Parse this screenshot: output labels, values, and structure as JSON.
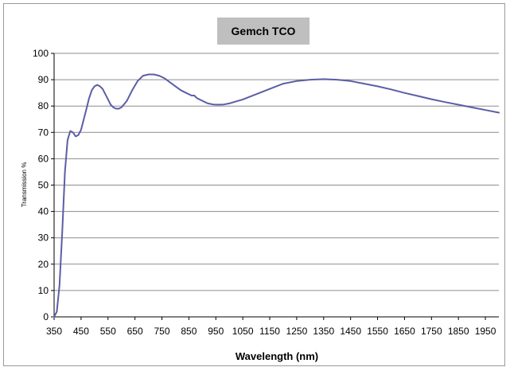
{
  "chart_data": {
    "type": "line",
    "title": "Gemch TCO",
    "xlabel": "Wavelength (nm)",
    "ylabel": "Transmission %",
    "xlim": [
      350,
      2000
    ],
    "ylim": [
      0,
      100
    ],
    "x_ticks": [
      350,
      450,
      550,
      650,
      750,
      850,
      950,
      1050,
      1150,
      1250,
      1350,
      1450,
      1550,
      1650,
      1750,
      1850,
      1950
    ],
    "y_ticks": [
      0,
      10,
      20,
      30,
      40,
      50,
      60,
      70,
      80,
      90,
      100
    ],
    "grid": "horizontal",
    "legend": "none",
    "colors": {
      "line": "#5b5ea6",
      "title_box": "#bfbfbf",
      "grid": "#8c8c8c"
    },
    "series": [
      {
        "x": [
          350,
          360,
          370,
          380,
          390,
          400,
          410,
          420,
          430,
          440,
          450,
          460,
          470,
          480,
          490,
          500,
          510,
          520,
          530,
          540,
          550,
          560,
          570,
          580,
          590,
          600,
          620,
          640,
          660,
          680,
          700,
          720,
          740,
          760,
          780,
          800,
          820,
          840,
          860,
          870,
          880,
          900,
          920,
          940,
          960,
          980,
          1000,
          1050,
          1100,
          1150,
          1200,
          1250,
          1300,
          1350,
          1400,
          1450,
          1500,
          1550,
          1600,
          1650,
          1700,
          1750,
          1800,
          1850,
          1900,
          1950,
          2000
        ],
        "y": [
          0,
          2,
          12,
          32,
          55,
          67,
          70.5,
          70,
          68.5,
          69,
          71,
          75,
          79,
          83,
          86,
          87.5,
          88,
          87.5,
          86.5,
          84.5,
          82.5,
          80.5,
          79.5,
          79,
          79,
          79.5,
          82,
          86,
          89.5,
          91.5,
          92,
          92,
          91.5,
          90.5,
          89,
          87.5,
          86,
          85,
          84,
          84,
          83,
          82,
          81,
          80.6,
          80.5,
          80.6,
          81,
          82.5,
          84.5,
          86.5,
          88.5,
          89.5,
          90,
          90.2,
          90,
          89.5,
          88.5,
          87.5,
          86.3,
          85,
          83.8,
          82.6,
          81.5,
          80.5,
          79.5,
          78.5,
          77.5
        ]
      }
    ]
  }
}
